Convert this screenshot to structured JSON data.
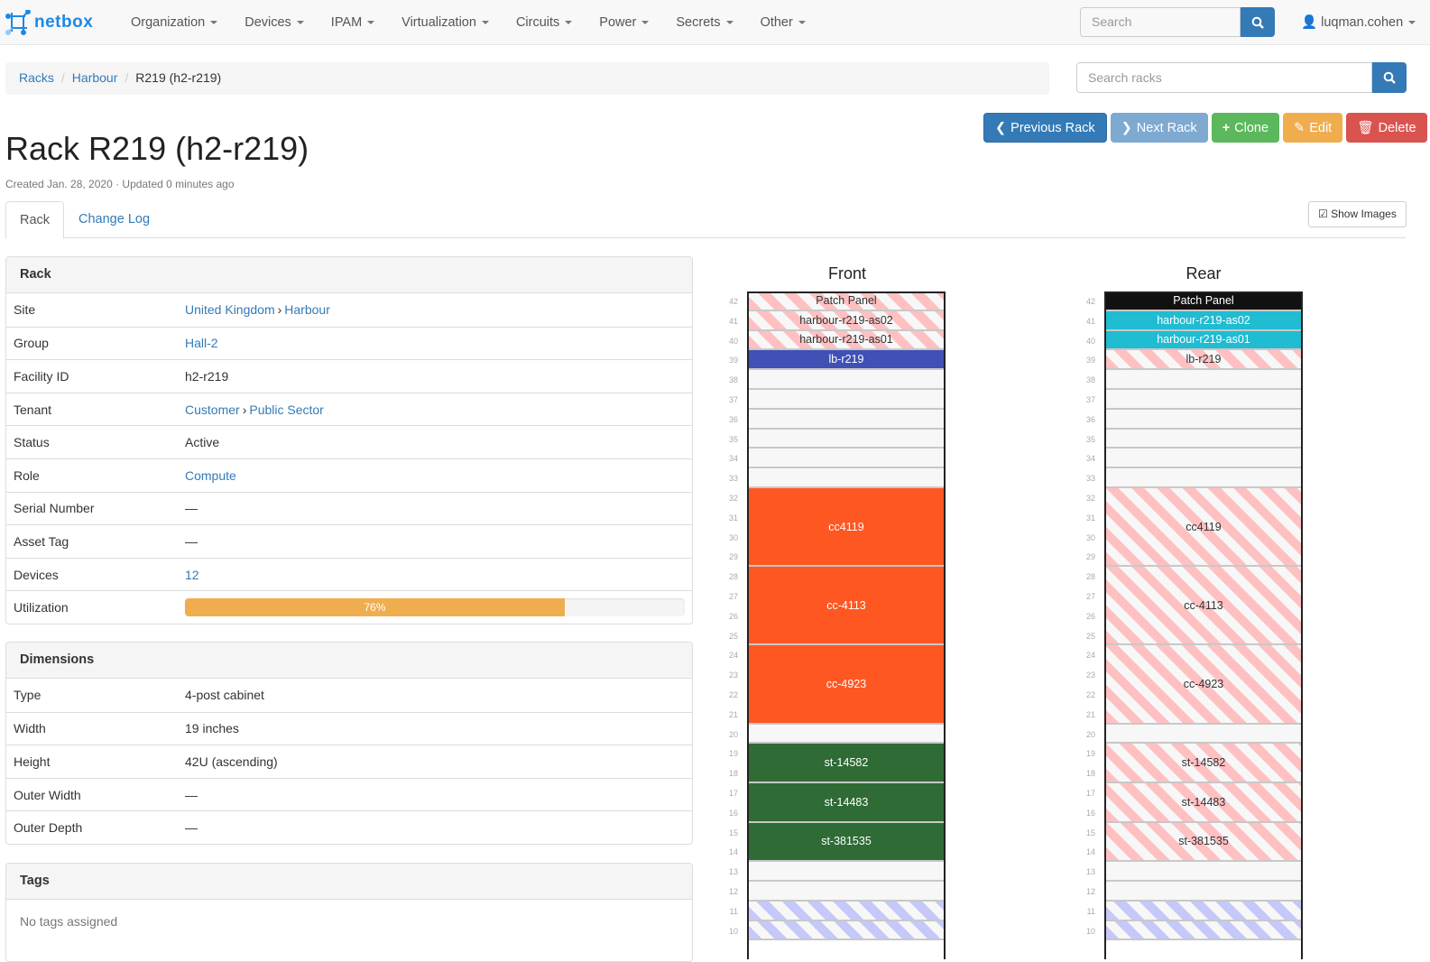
{
  "nav": {
    "brand": "netbox",
    "menus": [
      "Organization",
      "Devices",
      "IPAM",
      "Virtualization",
      "Circuits",
      "Power",
      "Secrets",
      "Other"
    ],
    "search_placeholder": "Search",
    "user": "luqman.cohen"
  },
  "breadcrumb": [
    "Racks",
    "Harbour",
    "R219 (h2-r219)"
  ],
  "rack_search_placeholder": "Search racks",
  "title": "Rack R219 (h2-r219)",
  "meta": "Created Jan. 28, 2020 · Updated 0 minutes ago",
  "buttons": {
    "prev": "Previous Rack",
    "next": "Next Rack",
    "clone": "Clone",
    "edit": "Edit",
    "delete": "Delete",
    "show_images": "Show Images"
  },
  "tabs": [
    "Rack",
    "Change Log"
  ],
  "rack_panel": {
    "title": "Rack",
    "rows": [
      {
        "k": "Site",
        "v": "United Kingdom",
        "v2": "Harbour",
        "link": true
      },
      {
        "k": "Group",
        "v": "Hall-2",
        "link": true
      },
      {
        "k": "Facility ID",
        "v": "h2-r219"
      },
      {
        "k": "Tenant",
        "v": "Customer",
        "v2": "Public Sector",
        "link": true
      },
      {
        "k": "Status",
        "v": "Active"
      },
      {
        "k": "Role",
        "v": "Compute",
        "link": true
      },
      {
        "k": "Serial Number",
        "v": "—"
      },
      {
        "k": "Asset Tag",
        "v": "—"
      },
      {
        "k": "Devices",
        "v": "12",
        "link": true
      }
    ],
    "utilization_label": "Utilization",
    "utilization": 76,
    "utilization_text": "76%"
  },
  "dimensions_panel": {
    "title": "Dimensions",
    "rows": [
      {
        "k": "Type",
        "v": "4-post cabinet"
      },
      {
        "k": "Width",
        "v": "19 inches"
      },
      {
        "k": "Height",
        "v": "42U (ascending)"
      },
      {
        "k": "Outer Width",
        "v": "—"
      },
      {
        "k": "Outer Depth",
        "v": "—"
      }
    ]
  },
  "tags_panel": {
    "title": "Tags",
    "empty": "No tags assigned"
  },
  "colors": {
    "primary": "#337ab7",
    "success": "#5cb85c",
    "warning": "#f0ad4e",
    "danger": "#d9534f",
    "info_light": "#7ea9d0"
  },
  "elevations": {
    "front": {
      "title": "Front",
      "devices": [
        {
          "name": "Patch Panel",
          "top": 42,
          "size": 1,
          "style": "stripe-red"
        },
        {
          "name": "harbour-r219-as02",
          "top": 41,
          "size": 1,
          "style": "stripe-red"
        },
        {
          "name": "harbour-r219-as01",
          "top": 40,
          "size": 1,
          "style": "stripe-red"
        },
        {
          "name": "lb-r219",
          "top": 39,
          "size": 1,
          "color": "#3f51b5"
        },
        {
          "name": "cc4119",
          "top": 32,
          "size": 4,
          "color": "#ff5722"
        },
        {
          "name": "cc-4113",
          "top": 28,
          "size": 4,
          "color": "#ff5722"
        },
        {
          "name": "cc-4923",
          "top": 24,
          "size": 4,
          "color": "#ff5722"
        },
        {
          "name": "st-14582",
          "top": 19,
          "size": 2,
          "color": "#2f6b35"
        },
        {
          "name": "st-14483",
          "top": 17,
          "size": 2,
          "color": "#2f6b35"
        },
        {
          "name": "st-381535",
          "top": 15,
          "size": 2,
          "color": "#2f6b35"
        },
        {
          "name": "",
          "top": 11,
          "size": 1,
          "style": "stripe-blue"
        },
        {
          "name": "",
          "top": 10,
          "size": 1,
          "style": "stripe-blue"
        }
      ]
    },
    "rear": {
      "title": "Rear",
      "devices": [
        {
          "name": "Patch Panel",
          "top": 42,
          "size": 1,
          "color": "#111111"
        },
        {
          "name": "harbour-r219-as02",
          "top": 41,
          "size": 1,
          "color": "#1fbcd2"
        },
        {
          "name": "harbour-r219-as01",
          "top": 40,
          "size": 1,
          "color": "#1fbcd2"
        },
        {
          "name": "lb-r219",
          "top": 39,
          "size": 1,
          "style": "stripe-red"
        },
        {
          "name": "cc4119",
          "top": 32,
          "size": 4,
          "style": "stripe-red"
        },
        {
          "name": "cc-4113",
          "top": 28,
          "size": 4,
          "style": "stripe-red"
        },
        {
          "name": "cc-4923",
          "top": 24,
          "size": 4,
          "style": "stripe-red"
        },
        {
          "name": "st-14582",
          "top": 19,
          "size": 2,
          "style": "stripe-red"
        },
        {
          "name": "st-14483",
          "top": 17,
          "size": 2,
          "style": "stripe-red"
        },
        {
          "name": "st-381535",
          "top": 15,
          "size": 2,
          "style": "stripe-red"
        },
        {
          "name": "",
          "top": 11,
          "size": 1,
          "style": "stripe-blue"
        },
        {
          "name": "",
          "top": 10,
          "size": 1,
          "style": "stripe-blue"
        }
      ]
    }
  }
}
